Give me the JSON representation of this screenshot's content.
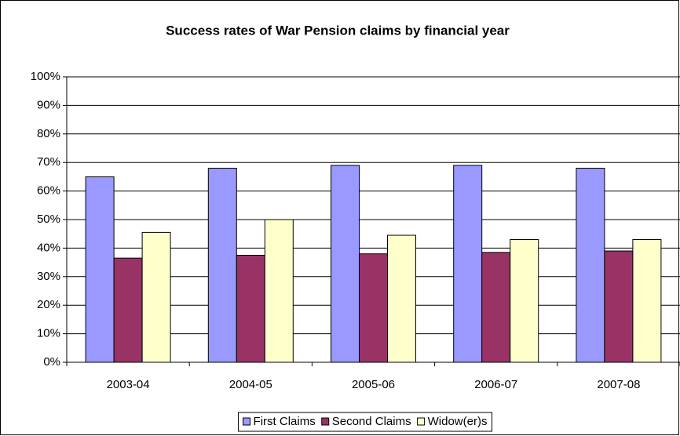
{
  "chart_data": {
    "type": "bar",
    "title": "Success rates of War Pension claims by financial year",
    "categories": [
      "2003-04",
      "2004-05",
      "2005-06",
      "2006-07",
      "2007-08"
    ],
    "series": [
      {
        "name": "First Claims",
        "color": "#9999ff",
        "values": [
          65,
          68,
          69,
          69,
          68
        ]
      },
      {
        "name": "Second Claims",
        "color": "#993366",
        "values": [
          36.5,
          37.5,
          38,
          38.5,
          39
        ]
      },
      {
        "name": "Widow(er)s",
        "color": "#ffffcc",
        "values": [
          45.5,
          50,
          44.5,
          43,
          43
        ]
      }
    ],
    "ylim": [
      0,
      100
    ],
    "yticks": [
      {
        "value": 0,
        "label": "0%"
      },
      {
        "value": 10,
        "label": "10%"
      },
      {
        "value": 20,
        "label": "20%"
      },
      {
        "value": 30,
        "label": "30%"
      },
      {
        "value": 40,
        "label": "40%"
      },
      {
        "value": 50,
        "label": "50%"
      },
      {
        "value": 60,
        "label": "60%"
      },
      {
        "value": 70,
        "label": "70%"
      },
      {
        "value": 80,
        "label": "80%"
      },
      {
        "value": 90,
        "label": "90%"
      },
      {
        "value": 100,
        "label": "100%"
      }
    ],
    "grid": true,
    "legend": "bottom"
  }
}
